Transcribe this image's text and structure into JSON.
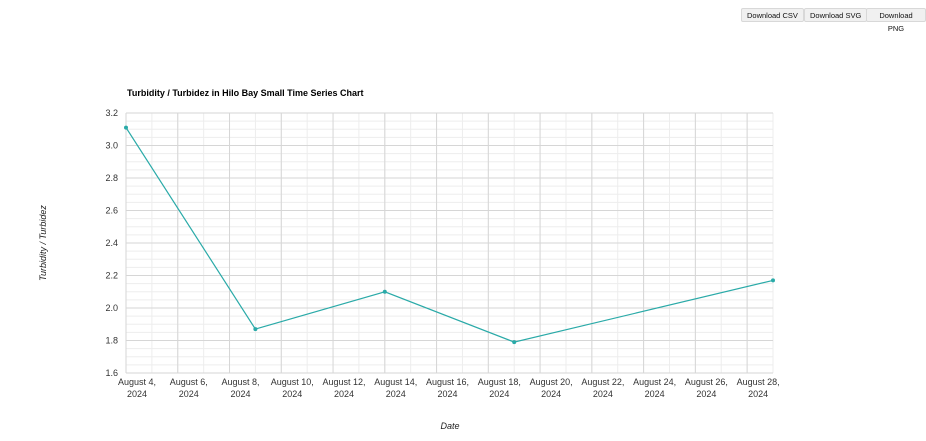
{
  "toolbar": {
    "download_csv": "Download CSV",
    "download_svg": "Download SVG",
    "download_png": "Download PNG"
  },
  "chart_data": {
    "type": "line",
    "title": "Turbidity / Turbidez in Hilo Bay Small Time Series Chart",
    "xlabel": "Date",
    "ylabel": "Turbidity / Turbidez",
    "x_ticks": [
      [
        "August 4,",
        "2024"
      ],
      [
        "August 6,",
        "2024"
      ],
      [
        "August 8,",
        "2024"
      ],
      [
        "August 10,",
        "2024"
      ],
      [
        "August 12,",
        "2024"
      ],
      [
        "August 14,",
        "2024"
      ],
      [
        "August 16,",
        "2024"
      ],
      [
        "August 18,",
        "2024"
      ],
      [
        "August 20,",
        "2024"
      ],
      [
        "August 22,",
        "2024"
      ],
      [
        "August 24,",
        "2024"
      ],
      [
        "August 26,",
        "2024"
      ],
      [
        "August 28,",
        "2024"
      ]
    ],
    "x_tick_dates": [
      "2024-08-04",
      "2024-08-06",
      "2024-08-08",
      "2024-08-10",
      "2024-08-12",
      "2024-08-14",
      "2024-08-16",
      "2024-08-18",
      "2024-08-20",
      "2024-08-22",
      "2024-08-24",
      "2024-08-26",
      "2024-08-28"
    ],
    "y_ticks": [
      "3.2",
      "3.0",
      "2.8",
      "2.6",
      "2.4",
      "2.2",
      "2.0",
      "1.8",
      "1.6"
    ],
    "ylim": [
      1.6,
      3.2
    ],
    "xlim": [
      "2024-08-04",
      "2024-08-29"
    ],
    "grid": true,
    "series": [
      {
        "color": "#2aaaa8",
        "points": [
          {
            "x": "2024-08-04",
            "y": 3.11
          },
          {
            "x": "2024-08-09",
            "y": 1.87
          },
          {
            "x": "2024-08-14",
            "y": 2.1
          },
          {
            "x": "2024-08-19",
            "y": 1.79
          },
          {
            "x": "2024-08-29",
            "y": 2.17
          }
        ]
      }
    ]
  }
}
